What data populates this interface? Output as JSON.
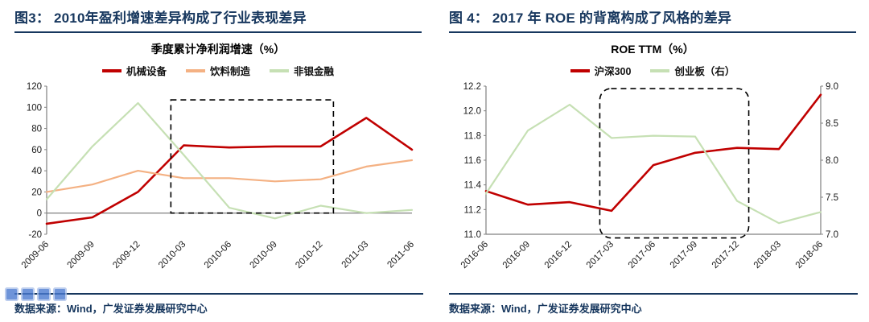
{
  "page": {
    "figure3": {
      "title": "图3： 2010年盈利增速差异构成了行业表现差异",
      "source": "数据来源：Wind，广发证券发展研究中心"
    },
    "figure4": {
      "title": "图 4： 2017 年 ROE 的背离构成了风格的差异",
      "source": "数据来源：Wind，广发证券发展研究中心"
    }
  },
  "colors": {
    "navy": "#17375E",
    "series_red": "#C00000",
    "series_salmon": "#F4B183",
    "series_green": "#C6E0B4",
    "dashed_box": "#000000"
  },
  "chart_data": [
    {
      "type": "line",
      "title": "季度累计净利润增速（%）",
      "categories": [
        "2009-06",
        "2009-09",
        "2009-12",
        "2010-03",
        "2010-06",
        "2010-09",
        "2010-12",
        "2011-03",
        "2011-06"
      ],
      "series": [
        {
          "name": "机械设备",
          "color": "#C00000",
          "values": [
            -10,
            -4,
            20,
            64,
            62,
            63,
            63,
            90,
            60
          ]
        },
        {
          "name": "饮料制造",
          "color": "#F4B183",
          "values": [
            20,
            27,
            40,
            33,
            33,
            30,
            32,
            44,
            50
          ]
        },
        {
          "name": "非银金融",
          "color": "#C6E0B4",
          "values": [
            13,
            63,
            104,
            55,
            5,
            -5,
            7,
            0,
            3
          ]
        }
      ],
      "ylim": [
        -20,
        120
      ],
      "yticks": [
        -20,
        0,
        20,
        40,
        60,
        80,
        100,
        120
      ],
      "tick_decimals": 0,
      "axis_cross": 0,
      "grid": false,
      "legend_position": "top",
      "highlight": {
        "from": 3,
        "to": 6,
        "y_from": 0,
        "y_to": 107,
        "rounded": false
      }
    },
    {
      "type": "line",
      "title": "ROE TTM（%）",
      "categories": [
        "2016-06",
        "2016-09",
        "2016-12",
        "2017-03",
        "2017-06",
        "2017-09",
        "2017-12",
        "2018-03",
        "2018-06"
      ],
      "series": [
        {
          "name": "沪深300",
          "axis": "left",
          "color": "#C00000",
          "values": [
            11.35,
            11.24,
            11.26,
            11.19,
            11.56,
            11.66,
            11.7,
            11.69,
            12.13
          ]
        },
        {
          "name": "创业板（右）",
          "axis": "right",
          "color": "#C6E0B4",
          "values": [
            7.55,
            8.4,
            8.75,
            8.3,
            8.33,
            8.32,
            7.45,
            7.15,
            7.3
          ]
        }
      ],
      "ylim": [
        11.0,
        12.2
      ],
      "yticks": [
        11.0,
        11.2,
        11.4,
        11.6,
        11.8,
        12.0,
        12.2
      ],
      "tick_decimals": 1,
      "ylim_right": [
        7.0,
        9.0
      ],
      "yticks_right": [
        7.0,
        7.5,
        8.0,
        8.5,
        9.0
      ],
      "axis_cross": 11.0,
      "grid": false,
      "legend_position": "top",
      "highlight": {
        "from": 3,
        "to": 6,
        "y_from": 10.97,
        "y_to": 12.18,
        "rounded": true
      }
    }
  ]
}
